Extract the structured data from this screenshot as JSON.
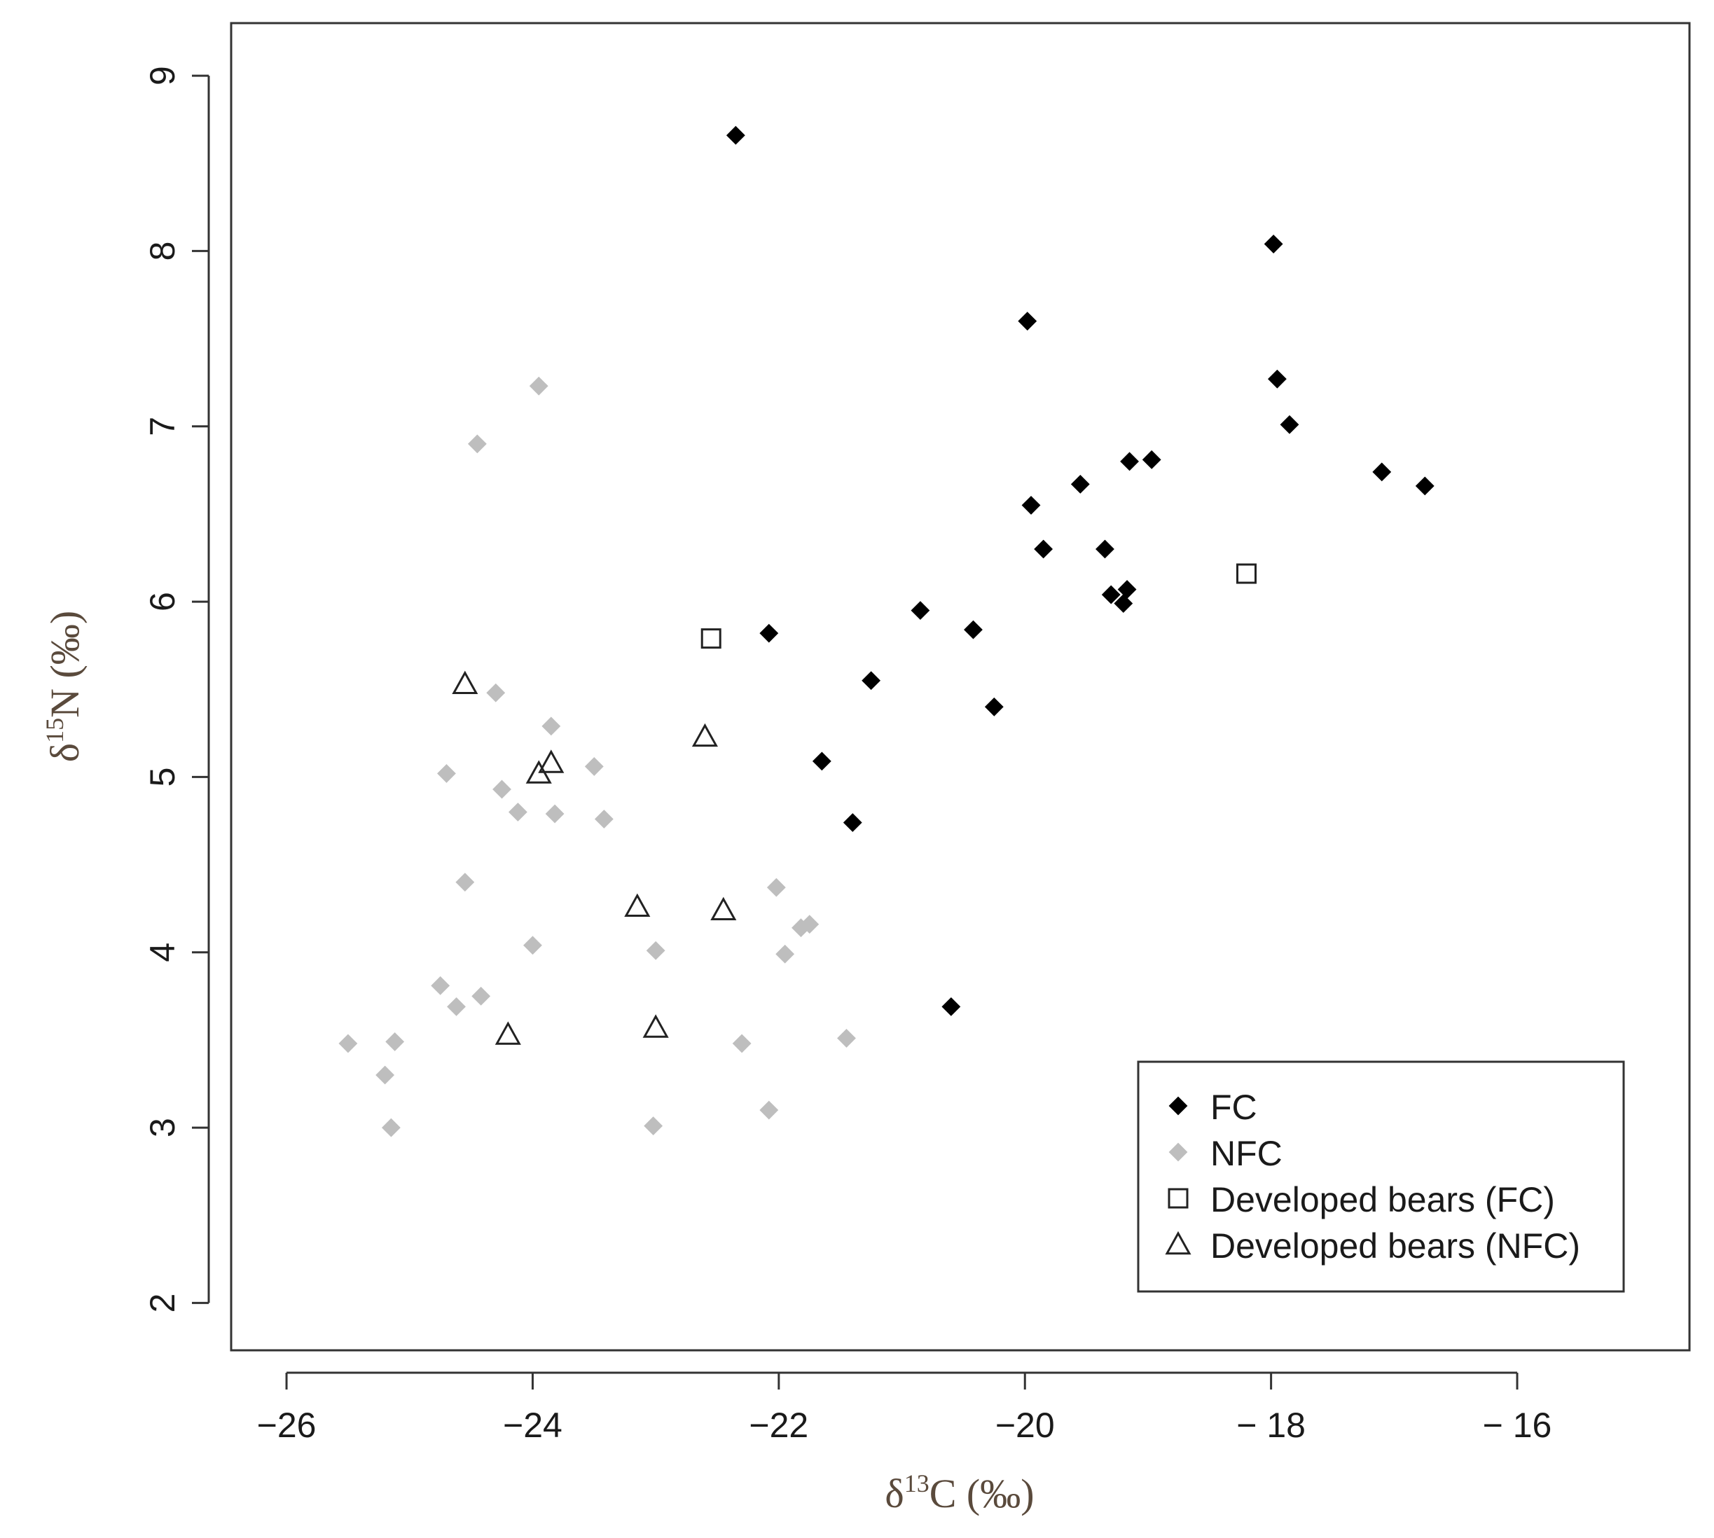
{
  "chart_data": {
    "type": "scatter",
    "xlim": [
      -26.45,
      -14.6
    ],
    "ylim": [
      1.73,
      9.3
    ],
    "x_ticks": [
      -26,
      -24,
      -22,
      -20,
      -18,
      -16
    ],
    "y_ticks": [
      2,
      3,
      4,
      5,
      6,
      7,
      8,
      9
    ],
    "x_tick_labels": [
      "−26",
      "−24",
      "−22",
      "−20",
      "− 18",
      "− 16"
    ],
    "y_tick_labels": [
      "2",
      "3",
      "4",
      "5",
      "6",
      "7",
      "8",
      "9"
    ],
    "xlabel": {
      "prefix": "δ",
      "sup": "13",
      "rest": "C (‰)"
    },
    "ylabel": {
      "prefix": "δ",
      "sup": "15",
      "rest": "N (‰)"
    },
    "grid": false,
    "legend_position": "bottom-right",
    "colors": {
      "fc": "#000000",
      "nfc": "#bebebe",
      "developed": "#222222",
      "axis": "#333333",
      "axis_title": "#5a4a3c"
    },
    "series": [
      {
        "name": "FC",
        "marker": "diamond",
        "points": [
          [
            -22.35,
            8.66
          ],
          [
            -17.98,
            8.04
          ],
          [
            -19.98,
            7.6
          ],
          [
            -17.95,
            7.27
          ],
          [
            -17.85,
            7.01
          ],
          [
            -19.15,
            6.8
          ],
          [
            -18.97,
            6.81
          ],
          [
            -17.1,
            6.74
          ],
          [
            -16.75,
            6.66
          ],
          [
            -19.55,
            6.67
          ],
          [
            -19.95,
            6.55
          ],
          [
            -19.85,
            6.3
          ],
          [
            -19.35,
            6.3
          ],
          [
            -19.17,
            6.07
          ],
          [
            -19.3,
            6.04
          ],
          [
            -19.2,
            5.99
          ],
          [
            -20.85,
            5.95
          ],
          [
            -20.42,
            5.84
          ],
          [
            -22.08,
            5.82
          ],
          [
            -21.25,
            5.55
          ],
          [
            -20.25,
            5.4
          ],
          [
            -21.65,
            5.09
          ],
          [
            -21.4,
            4.74
          ],
          [
            -20.6,
            3.69
          ]
        ]
      },
      {
        "name": "NFC",
        "marker": "diamond",
        "points": [
          [
            -23.95,
            7.23
          ],
          [
            -24.45,
            6.9
          ],
          [
            -24.3,
            5.48
          ],
          [
            -23.85,
            5.29
          ],
          [
            -23.5,
            5.06
          ],
          [
            -24.7,
            5.02
          ],
          [
            -24.25,
            4.93
          ],
          [
            -24.12,
            4.8
          ],
          [
            -23.82,
            4.79
          ],
          [
            -23.42,
            4.76
          ],
          [
            -24.55,
            4.4
          ],
          [
            -22.02,
            4.37
          ],
          [
            -21.82,
            4.14
          ],
          [
            -21.75,
            4.16
          ],
          [
            -24.0,
            4.04
          ],
          [
            -23.0,
            4.01
          ],
          [
            -21.95,
            3.99
          ],
          [
            -24.75,
            3.81
          ],
          [
            -24.42,
            3.75
          ],
          [
            -24.62,
            3.69
          ],
          [
            -25.5,
            3.48
          ],
          [
            -25.12,
            3.49
          ],
          [
            -21.45,
            3.51
          ],
          [
            -22.3,
            3.48
          ],
          [
            -25.2,
            3.3
          ],
          [
            -22.08,
            3.1
          ],
          [
            -25.15,
            3.0
          ],
          [
            -23.02,
            3.01
          ]
        ]
      },
      {
        "name": "Developed bears (FC)",
        "marker": "square",
        "points": [
          [
            -22.55,
            5.79
          ],
          [
            -18.2,
            6.16
          ]
        ]
      },
      {
        "name": "Developed bears (NFC)",
        "marker": "triangle",
        "points": [
          [
            -24.55,
            5.53
          ],
          [
            -23.95,
            5.02
          ],
          [
            -23.85,
            5.08
          ],
          [
            -22.6,
            5.23
          ],
          [
            -23.15,
            4.26
          ],
          [
            -22.45,
            4.24
          ],
          [
            -24.2,
            3.53
          ],
          [
            -23.0,
            3.57
          ]
        ]
      }
    ]
  }
}
